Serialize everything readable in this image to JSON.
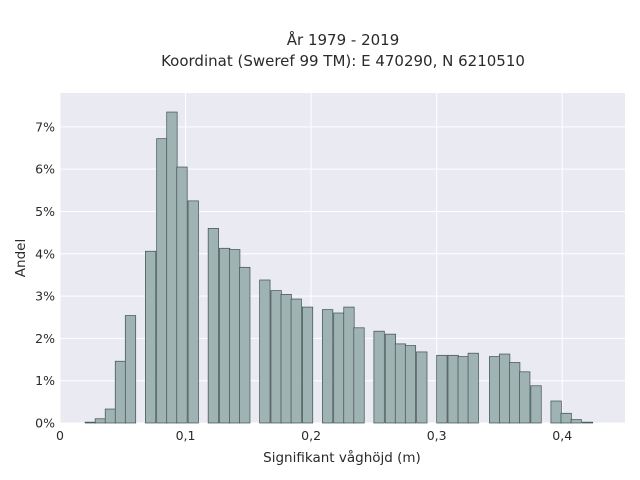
{
  "chart_data": {
    "type": "bar",
    "title": "År 1979 - 2019",
    "subtitle": "Koordinat (Sweref 99 TM): E 470290, N 6210510",
    "xlabel": "Signifikant våghöjd (m)",
    "ylabel": "Andel",
    "xlim": [
      0,
      0.45
    ],
    "ylim": [
      0,
      0.078
    ],
    "x_ticks": [
      0,
      0.1,
      0.2,
      0.3,
      0.4
    ],
    "x_tick_labels": [
      "0",
      "0,1",
      "0,2",
      "0,3",
      "0,4"
    ],
    "y_ticks": [
      0,
      0.01,
      0.02,
      0.03,
      0.04,
      0.05,
      0.06,
      0.07
    ],
    "y_tick_labels": [
      "0%",
      "1%",
      "2%",
      "3%",
      "4%",
      "5%",
      "6%",
      "7%"
    ],
    "grid": true,
    "bin_width": 0.0083,
    "bins_start": [
      0.02,
      0.028,
      0.036,
      0.044,
      0.052,
      0.068,
      0.077,
      0.085,
      0.093,
      0.102,
      0.118,
      0.127,
      0.135,
      0.143,
      0.159,
      0.168,
      0.176,
      0.184,
      0.193,
      0.209,
      0.218,
      0.226,
      0.234,
      0.25,
      0.259,
      0.267,
      0.275,
      0.284,
      0.3,
      0.309,
      0.317,
      0.325,
      0.342,
      0.35,
      0.358,
      0.366,
      0.375,
      0.391,
      0.399,
      0.407,
      0.416
    ],
    "values": [
      0.0002,
      0.001,
      0.0033,
      0.0146,
      0.0254,
      0.0406,
      0.0672,
      0.0735,
      0.0605,
      0.0525,
      0.046,
      0.0413,
      0.041,
      0.0368,
      0.0338,
      0.0313,
      0.0304,
      0.0293,
      0.0274,
      0.0268,
      0.026,
      0.0274,
      0.0225,
      0.0217,
      0.021,
      0.0187,
      0.0183,
      0.0168,
      0.016,
      0.016,
      0.0157,
      0.0165,
      0.0157,
      0.0163,
      0.0143,
      0.0121,
      0.0088,
      0.0052,
      0.0023,
      0.0008,
      0.0002
    ],
    "bar_color": "#9fb3b3",
    "bar_edge_color": "#3d4f4f",
    "plot_bg": "#eaeaf2"
  }
}
